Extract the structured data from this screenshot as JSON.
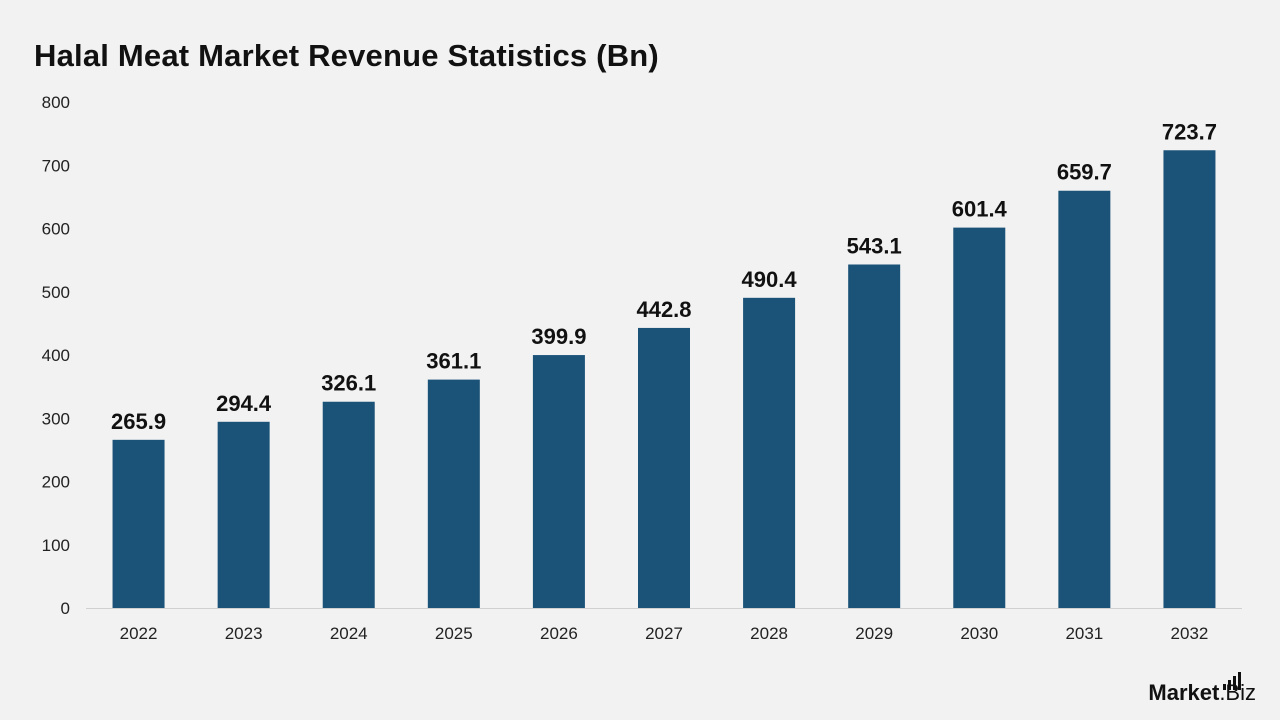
{
  "chart_data": {
    "type": "bar",
    "title": "Halal Meat Market Revenue Statistics (Bn)",
    "xlabel": "",
    "ylabel": "",
    "categories": [
      "2022",
      "2023",
      "2024",
      "2025",
      "2026",
      "2027",
      "2028",
      "2029",
      "2030",
      "2031",
      "2032"
    ],
    "values": [
      265.9,
      294.4,
      326.1,
      361.1,
      399.9,
      442.8,
      490.4,
      543.1,
      601.4,
      659.7,
      723.7
    ],
    "data_labels": [
      "265.9",
      "294.4",
      "326.1",
      "361.1",
      "399.9",
      "442.8",
      "490.4",
      "543.1",
      "601.4",
      "659.7",
      "723.7"
    ],
    "ylim": [
      0,
      800
    ],
    "yticks": [
      0,
      100,
      200,
      300,
      400,
      500,
      600,
      700,
      800
    ],
    "grid": false,
    "legend": "none",
    "bar_color": "#1b5278"
  },
  "logo": {
    "part1": "Market",
    "part2": ".Biz"
  }
}
